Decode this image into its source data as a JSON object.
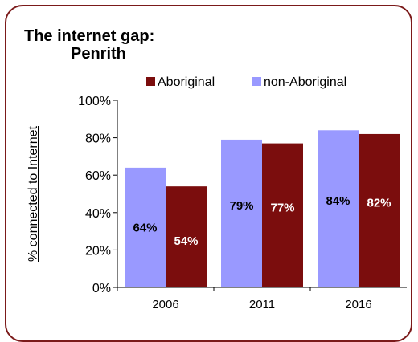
{
  "chart_data": {
    "type": "bar",
    "title": "The internet gap:",
    "subtitle": "Penrith",
    "ylabel": "% connected to Internet",
    "xlabel": "",
    "categories": [
      "2006",
      "2011",
      "2016"
    ],
    "ylim": [
      0,
      100
    ],
    "yticks": [
      "0%",
      "20%",
      "40%",
      "60%",
      "80%",
      "100%"
    ],
    "legend_position": "top",
    "grid": false,
    "series": [
      {
        "name": "non-Aboriginal",
        "color": "#9999ff",
        "values": [
          64,
          79,
          84
        ],
        "labels": [
          "64%",
          "79%",
          "84%"
        ],
        "label_color": "#000000"
      },
      {
        "name": "Aboriginal",
        "color": "#7b0d0d",
        "values": [
          54,
          77,
          82
        ],
        "labels": [
          "54%",
          "77%",
          "82%"
        ],
        "label_color": "#ffffff"
      }
    ],
    "legend_order": [
      "Aboriginal",
      "non-Aboriginal"
    ]
  }
}
